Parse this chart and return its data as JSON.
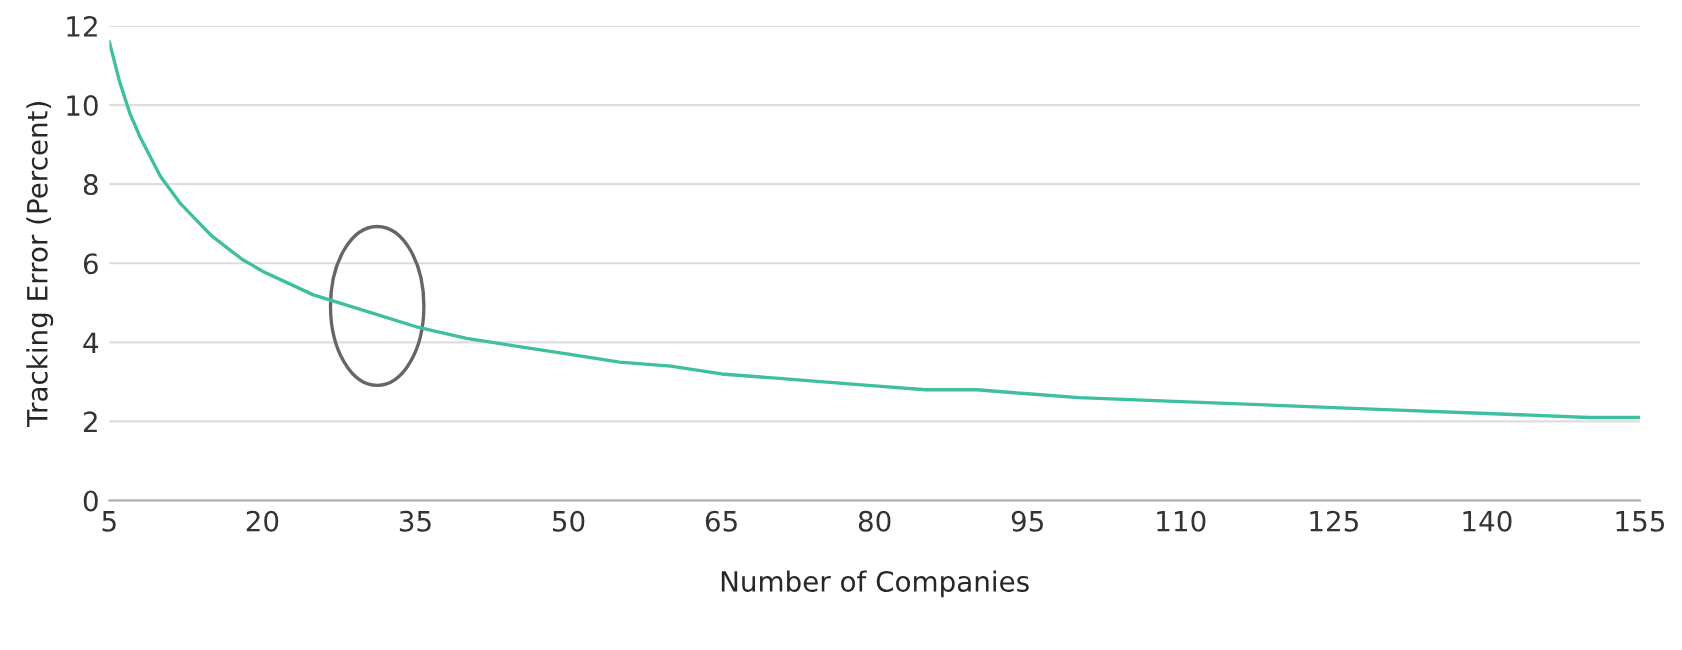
{
  "chart_data": {
    "type": "line",
    "xlabel": "Number of Companies",
    "ylabel": "Tracking Error (Percent)",
    "x": [
      5,
      6,
      7,
      8,
      10,
      12,
      15,
      18,
      20,
      25,
      30,
      35,
      40,
      45,
      50,
      55,
      60,
      65,
      70,
      75,
      80,
      85,
      90,
      95,
      100,
      110,
      120,
      130,
      140,
      150,
      155
    ],
    "series": [
      {
        "color": "#3dbfa0",
        "values": [
          11.6,
          10.6,
          9.8,
          9.2,
          8.2,
          7.5,
          6.7,
          6.1,
          5.8,
          5.2,
          4.8,
          4.4,
          4.1,
          3.9,
          3.7,
          3.5,
          3.4,
          3.2,
          3.1,
          3.0,
          2.9,
          2.8,
          2.8,
          2.7,
          2.6,
          2.5,
          2.4,
          2.3,
          2.2,
          2.1,
          2.1
        ]
      }
    ],
    "xlim": [
      5,
      155
    ],
    "xticks": [
      5,
      20,
      35,
      50,
      65,
      80,
      95,
      110,
      125,
      140,
      155
    ],
    "ylim": [
      0,
      12
    ],
    "yticks": [
      0,
      2,
      4,
      6,
      8,
      10,
      12
    ],
    "grid": "y",
    "legend": false,
    "marker": "none",
    "line_style": "solid"
  }
}
